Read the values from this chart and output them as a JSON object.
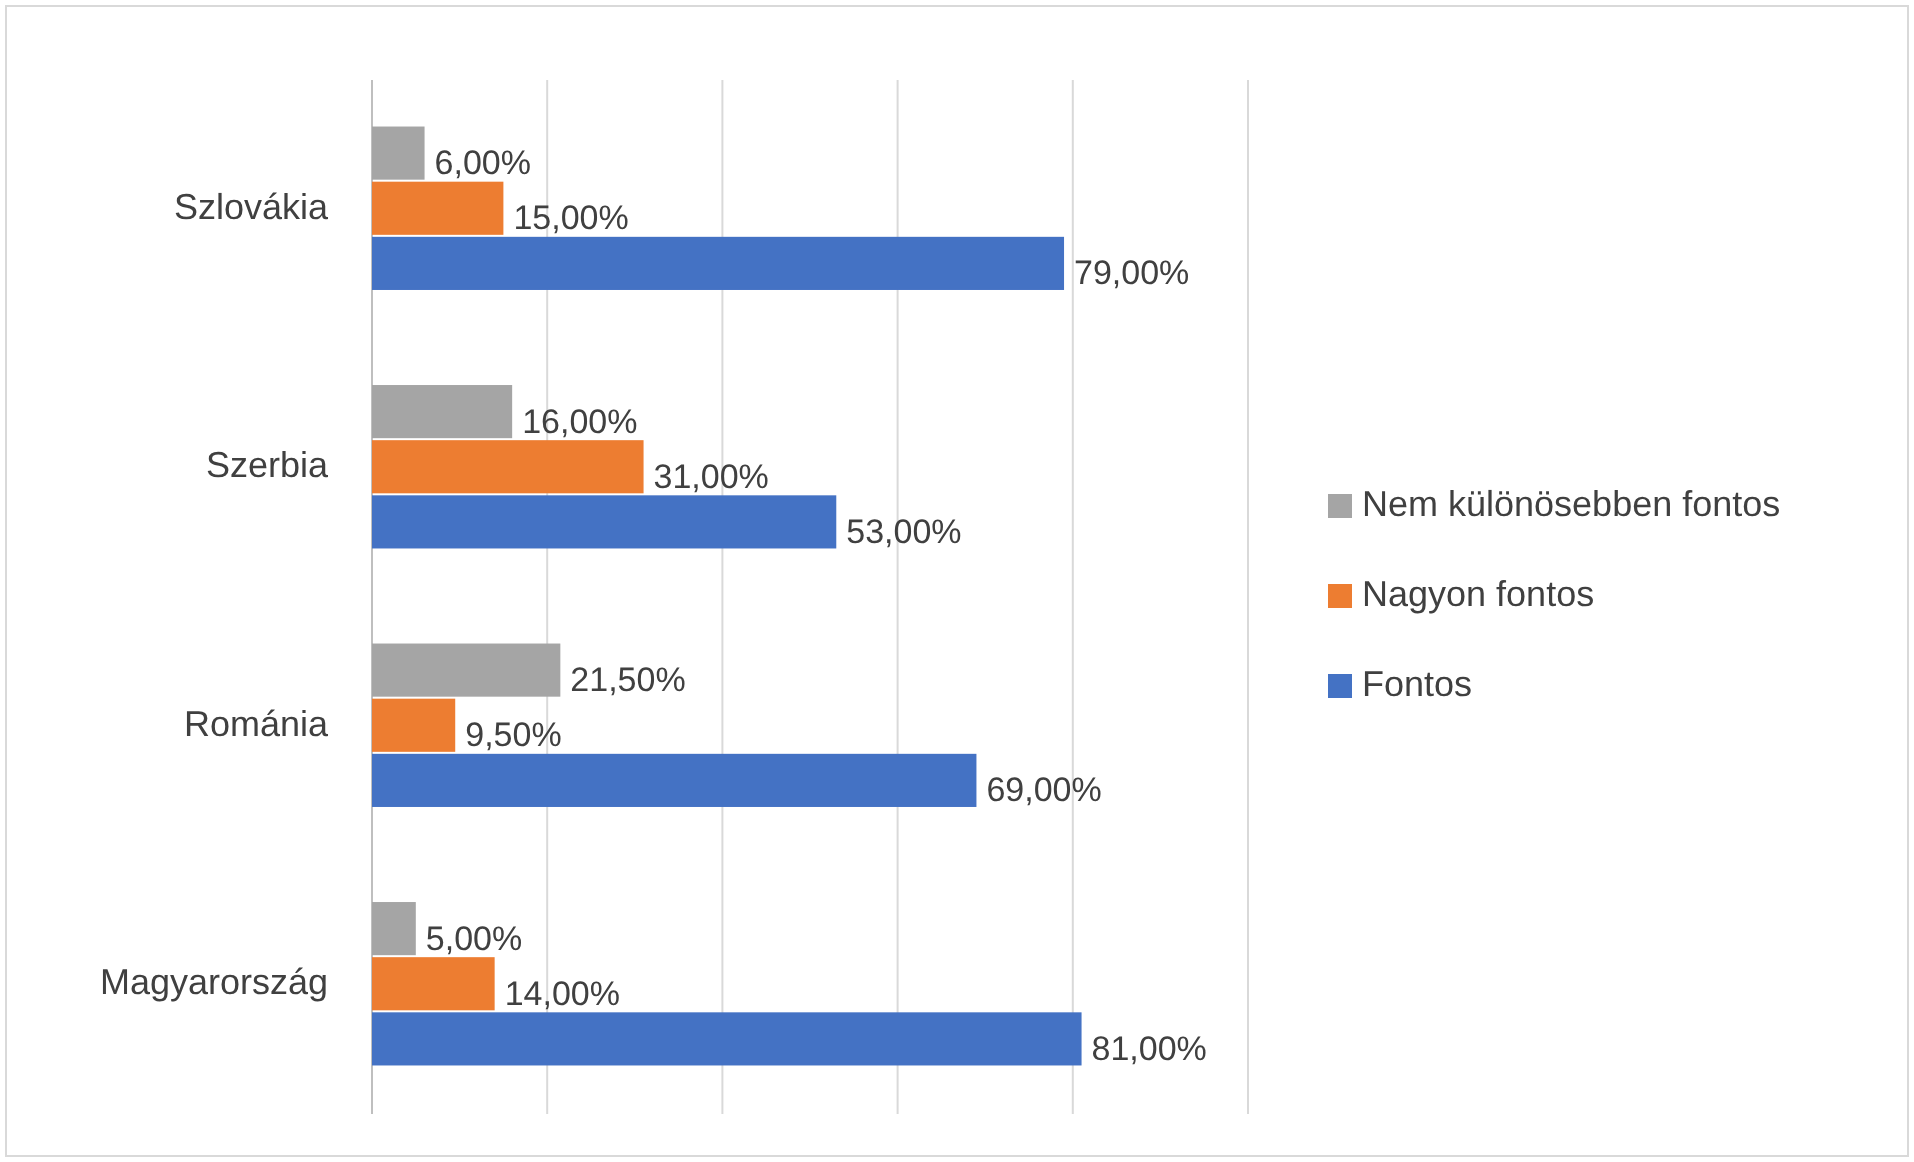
{
  "chart_data": {
    "type": "bar",
    "orientation": "horizontal",
    "categories": [
      "Szlovákia",
      "Szerbia",
      "Románia",
      "Magyarország"
    ],
    "series": [
      {
        "name": "Nem különösebben fontos",
        "color": "#a5a5a5",
        "values": [
          6,
          16,
          21.5,
          5
        ],
        "value_labels": [
          "6,00%",
          "16,00%",
          "21,50%",
          "5,00%"
        ]
      },
      {
        "name": "Nagyon fontos",
        "color": "#ed7d31",
        "values": [
          15,
          31,
          9.5,
          14
        ],
        "value_labels": [
          "15,00%",
          "31,00%",
          "9,50%",
          "14,00%"
        ]
      },
      {
        "name": "Fontos",
        "color": "#4472c4",
        "values": [
          79,
          53,
          69,
          81
        ],
        "value_labels": [
          "79,00%",
          "53,00%",
          "69,00%",
          "81,00%"
        ]
      }
    ],
    "xlim": [
      0,
      100
    ],
    "xticks": [
      {
        "value": 0,
        "label": null
      },
      {
        "value": 20,
        "label": null
      },
      {
        "value": 40,
        "label": null
      },
      {
        "value": 60,
        "label": null
      },
      {
        "value": 80,
        "label": null
      },
      {
        "value": 100,
        "label": null
      }
    ],
    "grid": "x",
    "legend": "right",
    "tick_labels": "y"
  }
}
